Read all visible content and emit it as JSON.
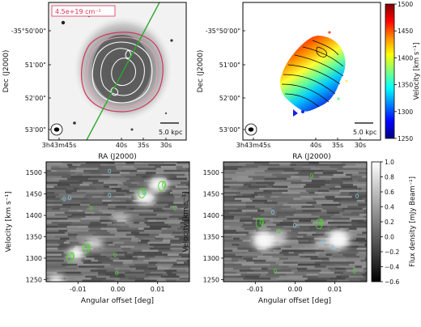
{
  "chart_data": [
    {
      "type": "heatmap",
      "panel": "moment0-map",
      "annotation": "4.5e+19 cm⁻²",
      "annotation_color": "#d6335a",
      "xlabel": "RA (J2000)",
      "ylabel": "Dec (J2000)",
      "x_ticks": [
        "3h43m45s",
        "40s",
        "35s",
        "30s"
      ],
      "y_ticks": [
        "53'00\"",
        "52'00\"",
        "51'00\"",
        "-35°50'00\""
      ],
      "scale_bar": "5.0 kpc",
      "colors": {
        "outer_contour": "#d6335a",
        "inner_contours": "#ffffff",
        "pv_slit": "#2ea82e",
        "galaxy": "#9a9a9a"
      }
    },
    {
      "type": "heatmap",
      "panel": "velocity-field",
      "xlabel": "RA (J2000)",
      "ylabel": "Dec (J2000)",
      "x_ticks": [
        "3h43m45s",
        "40s",
        "35s",
        "30s"
      ],
      "y_ticks": [
        "53'00\"",
        "52'00\"",
        "51'00\"",
        "-35°50'00\""
      ],
      "scale_bar": "5.0 kpc",
      "colorbar": {
        "label": "Velocity [km s⁻¹]",
        "range": [
          1250,
          1500
        ],
        "ticks": [
          "1500",
          "1450",
          "1400",
          "1350",
          "1300",
          "1250"
        ],
        "colormap": [
          "#7f0000",
          "#ff0000",
          "#ff8c00",
          "#ffff00",
          "#7fff7f",
          "#00ffff",
          "#0080ff",
          "#0000ff",
          "#00007f"
        ]
      }
    },
    {
      "type": "heatmap",
      "panel": "pv-major-axis",
      "xlabel": "Angular offset [deg]",
      "ylabel": "Velocity [km s⁻¹]",
      "x_ticks": [
        "-0.01",
        "0.00",
        "0.01"
      ],
      "y_ticks": [
        "1500",
        "1450",
        "1400",
        "1350",
        "1300",
        "1250"
      ],
      "xlim": [
        -0.018,
        0.018
      ],
      "ylim": [
        1245,
        1525
      ],
      "emission_peaks": [
        {
          "offset": -0.012,
          "velocity": 1302
        },
        {
          "offset": -0.008,
          "velocity": 1322
        },
        {
          "offset": 0.006,
          "velocity": 1452
        },
        {
          "offset": 0.011,
          "velocity": 1468
        }
      ]
    },
    {
      "type": "heatmap",
      "panel": "pv-minor-axis",
      "xlabel": "Angular offset [deg]",
      "ylabel": "Velocity [km s⁻¹]",
      "x_ticks": [
        "-0.01",
        "0.00",
        "0.01"
      ],
      "y_ticks": [
        "1500",
        "1450",
        "1400",
        "1350",
        "1300",
        "1250"
      ],
      "xlim": [
        -0.018,
        0.018
      ],
      "ylim": [
        1245,
        1525
      ],
      "emission_peaks": [
        {
          "offset": -0.009,
          "velocity": 1382
        },
        {
          "offset": 0.006,
          "velocity": 1380
        }
      ],
      "colorbar": {
        "label": "Flux density [mJy Beam⁻¹]",
        "range": [
          -0.6,
          1.0
        ],
        "ticks": [
          "1.0",
          "0.8",
          "0.6",
          "0.4",
          "0.2",
          "0.0",
          "−0.2",
          "−0.4",
          "−0.6"
        ]
      }
    }
  ]
}
